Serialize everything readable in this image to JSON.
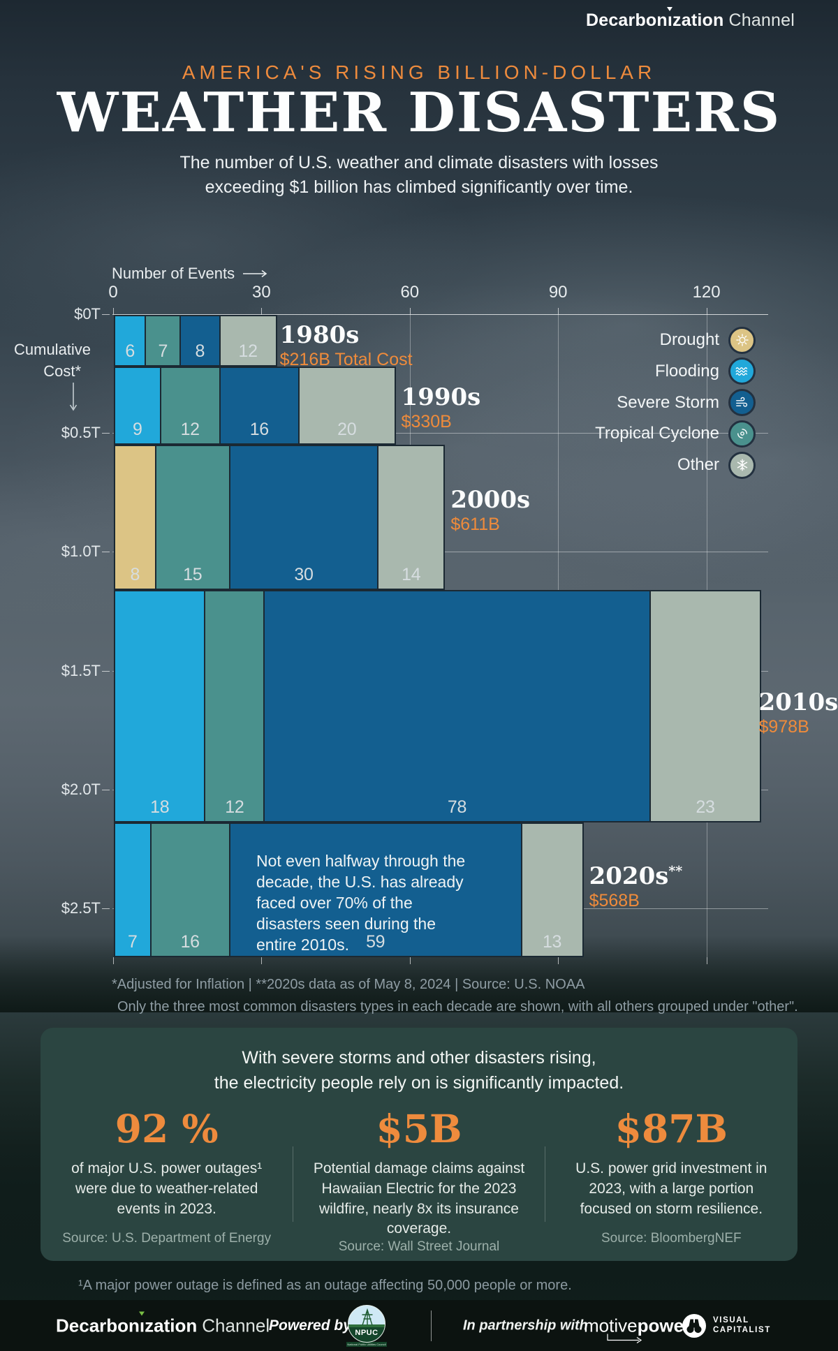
{
  "header": {
    "brand_bold_pre": "Decarbon",
    "brand_i": "ı",
    "brand_bold_post": "zation",
    "brand_light": "Channel",
    "kicker": "AMERICA'S RISING BILLION-DOLLAR",
    "title": "WEATHER DISASTERS",
    "subtitle_line1": "The number of U.S. weather and climate disasters with losses",
    "subtitle_line2": "exceeding $1 billion has climbed significantly over time."
  },
  "chart_data": {
    "type": "bar",
    "variant": "stacked-marimekko",
    "x_axis": {
      "label": "Number of Events",
      "ticks": [
        0,
        30,
        60,
        90,
        120
      ]
    },
    "y_axis": {
      "label_line1": "Cumulative",
      "label_line2": "Cost*",
      "tick_labels": [
        "$0T",
        "$0.5T",
        "$1.0T",
        "$1.5T",
        "$2.0T",
        "$2.5T"
      ],
      "tick_values_billions": [
        0,
        500,
        1000,
        1500,
        2000,
        2500
      ]
    },
    "categories": [
      {
        "key": "drought",
        "label": "Drought",
        "color": "#dcc485"
      },
      {
        "key": "flooding",
        "label": "Flooding",
        "color": "#21a8da"
      },
      {
        "key": "severe_storm",
        "label": "Severe Storm",
        "color": "#135f90"
      },
      {
        "key": "tropical_cyclone",
        "label": "Tropical Cyclone",
        "color": "#4a918d"
      },
      {
        "key": "other",
        "label": "Other",
        "color": "#a9b8ae"
      }
    ],
    "decades": [
      {
        "label": "1980s",
        "suffix": "",
        "cost_billions": 216,
        "cost_label": "$216B Total Cost",
        "segments": [
          {
            "category": "flooding",
            "count": 6
          },
          {
            "category": "tropical_cyclone",
            "count": 7
          },
          {
            "category": "severe_storm",
            "count": 8
          },
          {
            "category": "other",
            "count": 12
          }
        ]
      },
      {
        "label": "1990s",
        "suffix": "",
        "cost_billions": 330,
        "cost_label": "$330B",
        "segments": [
          {
            "category": "flooding",
            "count": 9
          },
          {
            "category": "tropical_cyclone",
            "count": 12
          },
          {
            "category": "severe_storm",
            "count": 16
          },
          {
            "category": "other",
            "count": 20
          }
        ]
      },
      {
        "label": "2000s",
        "suffix": "",
        "cost_billions": 611,
        "cost_label": "$611B",
        "segments": [
          {
            "category": "drought",
            "count": 8
          },
          {
            "category": "tropical_cyclone",
            "count": 15
          },
          {
            "category": "severe_storm",
            "count": 30
          },
          {
            "category": "other",
            "count": 14
          }
        ]
      },
      {
        "label": "2010s",
        "suffix": "",
        "cost_billions": 978,
        "cost_label": "$978B",
        "segments": [
          {
            "category": "flooding",
            "count": 18
          },
          {
            "category": "tropical_cyclone",
            "count": 12
          },
          {
            "category": "severe_storm",
            "count": 78
          },
          {
            "category": "other",
            "count": 23
          }
        ]
      },
      {
        "label": "2020s",
        "suffix": "**",
        "cost_billions": 568,
        "cost_label": "$568B",
        "segments": [
          {
            "category": "flooding",
            "count": 7
          },
          {
            "category": "tropical_cyclone",
            "count": 16
          },
          {
            "category": "severe_storm",
            "count": 59
          },
          {
            "category": "other",
            "count": 13
          }
        ]
      }
    ],
    "annotation": "Not even halfway through the decade, the U.S. has already faced over 70% of the disasters seen during the entire 2010s.",
    "footnote_line1": "*Adjusted for Inflation | **2020s data as of May 8, 2024 | Source: U.S. NOAA",
    "footnote_line2": "Only the three most common disasters types in each decade are shown, with all others grouped under \"other\".",
    "legend_position": "top-right",
    "grid": true
  },
  "impact_panel": {
    "heading_line1": "With severe storms and other disasters rising,",
    "heading_line2": "the electricity people rely on is significantly impacted.",
    "stats": [
      {
        "value": "92 %",
        "description": "of major U.S. power outages¹ were due to weather-related events in 2023.",
        "source": "Source: U.S. Department of Energy"
      },
      {
        "value": "$5B",
        "description": "Potential damage claims against Hawaiian Electric for the 2023 wildfire, nearly 8x its insurance coverage.",
        "source": "Source: Wall Street Journal"
      },
      {
        "value": "$87B",
        "description": "U.S. power grid investment in 2023, with a large portion focused on storm resilience.",
        "source": "Source: BloombergNEF"
      }
    ],
    "footnote": "¹A major power outage is defined as an outage affecting 50,000 people or more."
  },
  "footer": {
    "brand_bold_pre": "Decarbon",
    "brand_i": "ı",
    "brand_bold_post": "zation",
    "brand_light": "Channel",
    "powered_by": "Powered by",
    "npuc_label": "NPUC",
    "npuc_subtext": "National Public Utilities Council",
    "partnership": "In partnership with",
    "motive_part1": "motive",
    "motive_part2": "power",
    "vc_line1": "VISUAL",
    "vc_line2": "CAPITALIST"
  },
  "colors": {
    "accent_orange": "#ee8b3d",
    "panel_background": "#2b4541",
    "footer_background": "#0c1310",
    "segment_border": "#1b2933"
  }
}
